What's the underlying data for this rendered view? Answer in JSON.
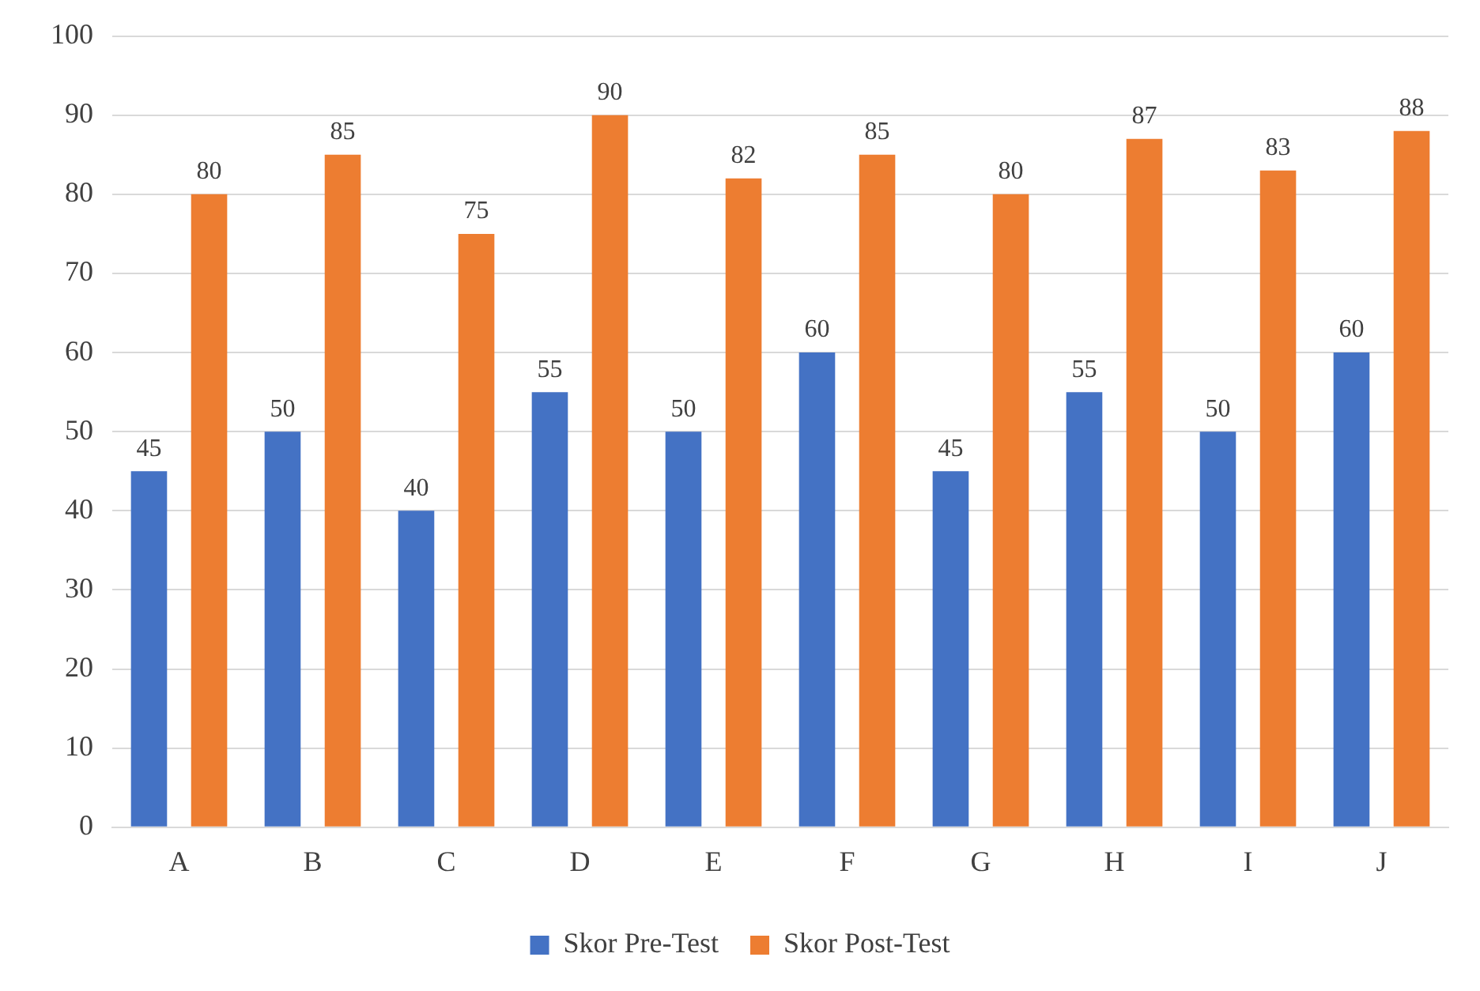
{
  "chart_data": {
    "type": "bar",
    "categories": [
      "A",
      "B",
      "C",
      "D",
      "E",
      "F",
      "G",
      "H",
      "I",
      "J"
    ],
    "series": [
      {
        "name": "Skor Pre-Test",
        "color": "#4472c4",
        "values": [
          45,
          50,
          40,
          55,
          50,
          60,
          45,
          55,
          50,
          60
        ]
      },
      {
        "name": "Skor Post-Test",
        "color": "#ed7d31",
        "values": [
          80,
          85,
          75,
          90,
          82,
          85,
          80,
          87,
          83,
          88
        ]
      }
    ],
    "ylim": [
      0,
      100
    ],
    "yticks": [
      0,
      10,
      20,
      30,
      40,
      50,
      60,
      70,
      80,
      90,
      100
    ],
    "grid": "y",
    "legend": "bottom",
    "data_labels": true
  }
}
